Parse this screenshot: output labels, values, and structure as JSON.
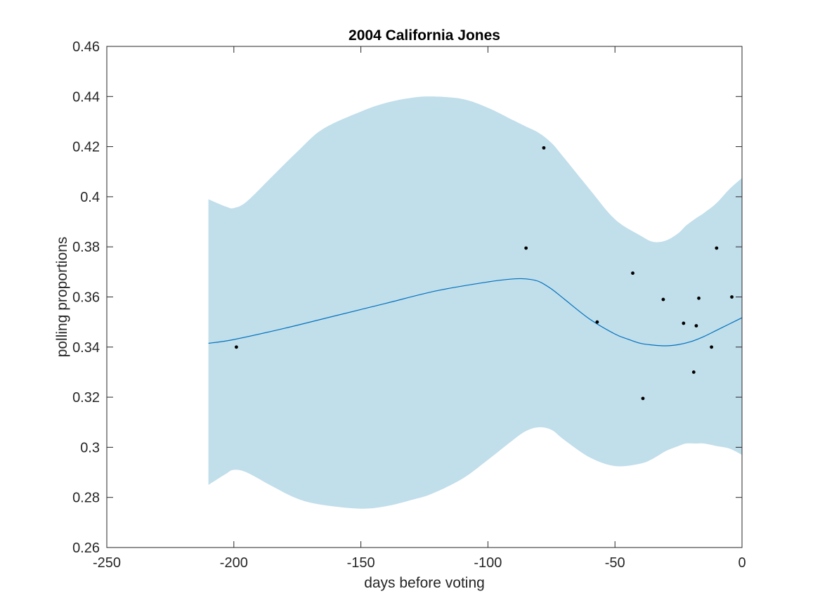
{
  "chart_data": {
    "type": "line",
    "title": "2004 California Jones",
    "xlabel": "days before voting",
    "ylabel": "polling proportions",
    "xlim": [
      -250,
      0
    ],
    "ylim": [
      0.26,
      0.46
    ],
    "xticks": [
      -250,
      -200,
      -150,
      -100,
      -50,
      0
    ],
    "xtick_labels": [
      "-250",
      "-200",
      "-150",
      "-100",
      "-50",
      "0"
    ],
    "yticks": [
      0.26,
      0.28,
      0.3,
      0.32,
      0.34,
      0.36,
      0.38,
      0.4,
      0.42,
      0.44,
      0.46
    ],
    "ytick_labels": [
      "0.26",
      "0.28",
      "0.3",
      "0.32",
      "0.34",
      "0.36",
      "0.38",
      "0.4",
      "0.42",
      "0.44",
      "0.46"
    ],
    "grid": false,
    "colors": {
      "band": "#c1deeb",
      "line": "#0072bd",
      "points": "#000000",
      "axes": "#262626"
    },
    "series": [
      {
        "kind": "band",
        "x": [
          -210,
          -203,
          -200,
          -195,
          -185,
          -175,
          -165,
          -150,
          -140,
          -130,
          -122,
          -110,
          -100,
          -90,
          -85,
          -80,
          -75,
          -70,
          -60,
          -50,
          -40,
          -35,
          -30,
          -25,
          -22,
          -18,
          -15,
          -10,
          -5,
          0
        ],
        "upper": [
          0.399,
          0.396,
          0.3955,
          0.398,
          0.408,
          0.418,
          0.427,
          0.434,
          0.4375,
          0.4395,
          0.44,
          0.439,
          0.4355,
          0.4305,
          0.428,
          0.4255,
          0.4215,
          0.4155,
          0.403,
          0.391,
          0.3845,
          0.382,
          0.3825,
          0.3855,
          0.3885,
          0.3915,
          0.3935,
          0.3975,
          0.403,
          0.4075
        ],
        "lower": [
          0.285,
          0.2895,
          0.291,
          0.29,
          0.2845,
          0.2795,
          0.277,
          0.2755,
          0.2765,
          0.279,
          0.2815,
          0.2875,
          0.295,
          0.303,
          0.3065,
          0.308,
          0.307,
          0.303,
          0.296,
          0.2925,
          0.2935,
          0.2955,
          0.2985,
          0.3005,
          0.3015,
          0.3015,
          0.3015,
          0.3005,
          0.2995,
          0.297
        ]
      },
      {
        "kind": "line",
        "x": [
          -210,
          -200,
          -180,
          -160,
          -140,
          -120,
          -100,
          -90,
          -85,
          -80,
          -75,
          -70,
          -60,
          -50,
          -45,
          -40,
          -35,
          -30,
          -25,
          -20,
          -15,
          -10,
          -5,
          0
        ],
        "y": [
          0.3415,
          0.343,
          0.3475,
          0.3525,
          0.3575,
          0.3625,
          0.366,
          0.3672,
          0.3672,
          0.3662,
          0.3632,
          0.3592,
          0.3512,
          0.3452,
          0.3432,
          0.3415,
          0.3408,
          0.3405,
          0.341,
          0.3422,
          0.3442,
          0.3467,
          0.3492,
          0.3517
        ]
      },
      {
        "kind": "scatter",
        "points": [
          [
            -199,
            0.34
          ],
          [
            -85,
            0.3795
          ],
          [
            -78,
            0.4195
          ],
          [
            -57,
            0.35
          ],
          [
            -43,
            0.3695
          ],
          [
            -39,
            0.3195
          ],
          [
            -31,
            0.359
          ],
          [
            -23,
            0.3495
          ],
          [
            -19,
            0.33
          ],
          [
            -18,
            0.3485
          ],
          [
            -17,
            0.3595
          ],
          [
            -12,
            0.34
          ],
          [
            -10,
            0.3795
          ],
          [
            -4,
            0.36
          ]
        ]
      }
    ]
  }
}
